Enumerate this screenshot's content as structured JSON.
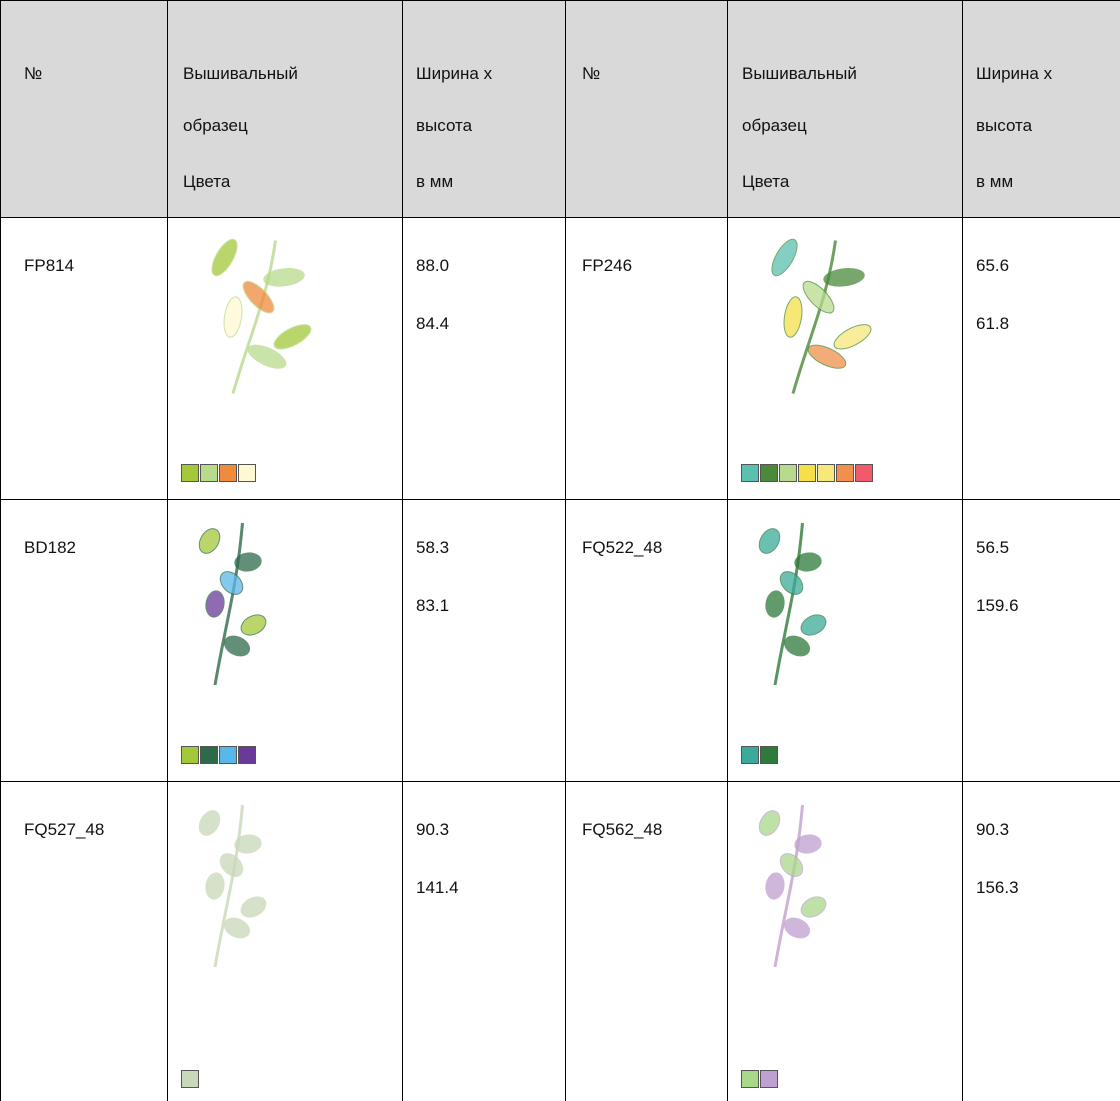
{
  "table": {
    "header": [
      [
        "№"
      ],
      [
        "Вышивальный",
        "образец",
        "Цвета"
      ],
      [
        "Ширина x",
        "высота",
        "в мм"
      ],
      [
        "№"
      ],
      [
        "Вышивальный",
        "образец",
        "Цвета"
      ],
      [
        "Ширина x",
        "высота",
        "в мм"
      ]
    ],
    "rows": [
      [
        {
          "id": "FP814",
          "colors": [
            "#a3c93a",
            "#b8da8c",
            "#f08a3c",
            "#fff8d2"
          ],
          "width": "88.0",
          "height": "84.4"
        },
        {
          "id": "FP246",
          "colors": [
            "#5cc0b0",
            "#4a8a3a",
            "#b8da8c",
            "#f5e04a",
            "#f7e87a",
            "#f0904a",
            "#f05a6a"
          ],
          "width": "65.6",
          "height": "61.8"
        }
      ],
      [
        {
          "id": "BD182",
          "colors": [
            "#a3c93a",
            "#2e6a4a",
            "#5ab8e8",
            "#6a3a9a"
          ],
          "width": "58.3",
          "height": "83.1"
        },
        {
          "id": "FQ522_48",
          "colors": [
            "#3aaa9a",
            "#2e7a3a"
          ],
          "width": "56.5",
          "height": "159.6"
        }
      ],
      [
        {
          "id": "FQ527_48",
          "colors": [
            "#c8d8b8"
          ],
          "width": "90.3",
          "height": "141.4"
        },
        {
          "id": "FQ562_48",
          "colors": [
            "#a8d88a",
            "#c0a0d0"
          ],
          "width": "90.3",
          "height": "156.3"
        }
      ]
    ]
  }
}
